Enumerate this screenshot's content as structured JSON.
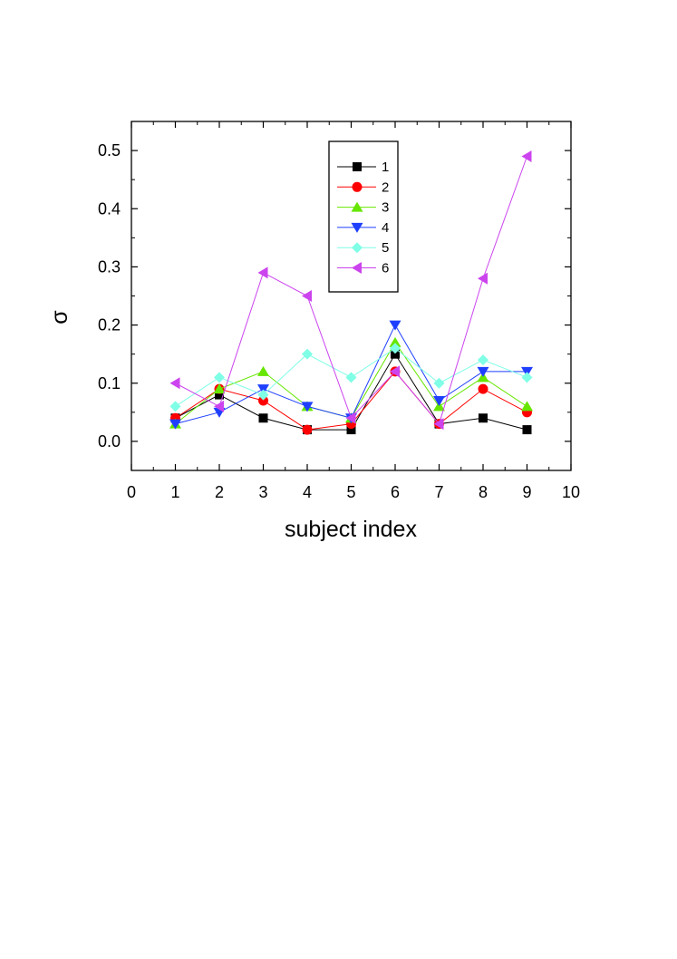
{
  "chart_data": {
    "type": "line",
    "title": "",
    "xlabel": "subject index",
    "ylabel": "σ",
    "xlim": [
      0,
      10
    ],
    "ylim": [
      -0.05,
      0.55
    ],
    "x_ticks": [
      "0",
      "1",
      "2",
      "3",
      "4",
      "5",
      "6",
      "7",
      "8",
      "9",
      "10"
    ],
    "y_ticks": [
      "0.0",
      "0.1",
      "0.2",
      "0.3",
      "0.4",
      "0.5"
    ],
    "y_tick_values": [
      0.0,
      0.1,
      0.2,
      0.3,
      0.4,
      0.5
    ],
    "grid": false,
    "legend_position": "top-center",
    "x": [
      1,
      2,
      3,
      4,
      5,
      6,
      7,
      8,
      9
    ],
    "series": [
      {
        "name": "1",
        "color": "#000000",
        "marker": "square",
        "values": [
          0.04,
          0.08,
          0.04,
          0.02,
          0.02,
          0.15,
          0.03,
          0.04,
          0.02
        ]
      },
      {
        "name": "2",
        "color": "#ff0000",
        "marker": "circle",
        "values": [
          0.04,
          0.09,
          0.07,
          0.02,
          0.03,
          0.12,
          0.03,
          0.09,
          0.05
        ]
      },
      {
        "name": "3",
        "color": "#66e600",
        "marker": "triangle-up",
        "values": [
          0.03,
          0.09,
          0.12,
          0.06,
          0.04,
          0.17,
          0.06,
          0.11,
          0.06
        ]
      },
      {
        "name": "4",
        "color": "#1f3fff",
        "marker": "triangle-down",
        "values": [
          0.03,
          0.05,
          0.09,
          0.06,
          0.04,
          0.2,
          0.07,
          0.12,
          0.12
        ]
      },
      {
        "name": "5",
        "color": "#7fffe6",
        "marker": "diamond",
        "values": [
          0.06,
          0.11,
          0.08,
          0.15,
          0.11,
          0.16,
          0.1,
          0.14,
          0.11
        ]
      },
      {
        "name": "6",
        "color": "#cc44ee",
        "marker": "triangle-left",
        "values": [
          0.1,
          0.06,
          0.29,
          0.25,
          0.04,
          0.12,
          0.03,
          0.28,
          0.49
        ]
      }
    ]
  }
}
